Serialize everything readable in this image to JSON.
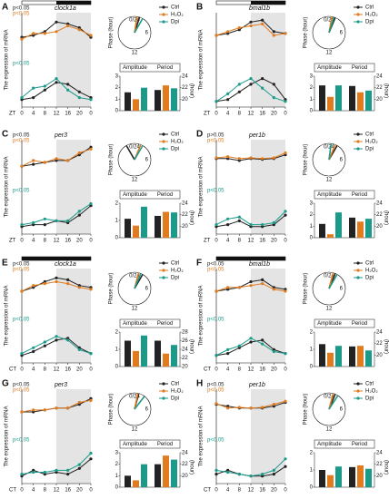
{
  "shared": {
    "legend": [
      {
        "name": "Ctrl",
        "color": "#222222"
      },
      {
        "name": "H₂O₂",
        "color": "#e07b20"
      },
      {
        "name": "Dpi",
        "color": "#1b9a8a"
      }
    ],
    "y_label": "The expression of mRNA",
    "phase_label": "Phase (hour)",
    "phase_ticks": [
      "0/24",
      "6",
      "12"
    ],
    "bar_categories": [
      "Amplitude",
      "Period"
    ],
    "y2_label": "(hour)"
  },
  "chart_data": [
    {
      "type": "line",
      "label": "A",
      "gene": "clock1a",
      "x_prefix": "ZT",
      "light_bar": "LD",
      "p_values": [
        "p<0.05",
        "p<0.05",
        "p<0.05"
      ],
      "x": [
        0,
        4,
        8,
        12,
        16,
        20,
        24
      ],
      "xlim": [
        0,
        24
      ],
      "xticks": [
        0,
        4,
        8,
        12,
        16,
        20,
        {
          "value": 24,
          "label": "0"
        }
      ],
      "ylim": [
        0,
        1
      ],
      "top": [
        [
          0.45,
          0.5,
          0.6,
          0.85,
          0.8,
          0.7,
          0.45
        ],
        [
          0.4,
          0.55,
          0.55,
          0.6,
          0.75,
          0.65,
          0.5
        ]
      ],
      "bottom": [
        [
          0.15,
          0.2,
          0.4,
          0.6,
          0.55,
          0.35,
          0.2
        ],
        [
          0.2,
          0.45,
          0.5,
          0.7,
          0.4,
          0.2,
          0.15
        ]
      ],
      "amplitude": [
        1.6,
        1.0,
        2.0
      ],
      "period": [
        21.6,
        22.4,
        21.9
      ],
      "bar_ylim": [
        0,
        3
      ],
      "bar_yticks": [
        0,
        1,
        2,
        3
      ],
      "y2lim": [
        18,
        24
      ],
      "y2ticks": [
        20,
        22,
        24
      ],
      "phase": [
        1.2,
        0.6,
        2
      ]
    },
    {
      "type": "line",
      "label": "B",
      "gene": "bmal1b",
      "x_prefix": "ZT",
      "light_bar": "LD",
      "x": [
        0,
        4,
        8,
        12,
        16,
        20,
        24
      ],
      "xlim": [
        0,
        24
      ],
      "xticks": [
        0,
        4,
        8,
        12,
        16,
        20,
        {
          "value": 24,
          "label": "0"
        }
      ],
      "ylim": [
        0,
        1
      ],
      "top": [
        [
          0.5,
          0.55,
          0.65,
          0.85,
          0.9,
          0.6,
          0.55
        ],
        [
          0.5,
          0.6,
          0.7,
          0.75,
          0.8,
          0.5,
          0.55
        ]
      ],
      "bottom": [
        [
          0.1,
          0.15,
          0.35,
          0.55,
          0.7,
          0.55,
          0.15
        ],
        [
          0.1,
          0.3,
          0.55,
          0.7,
          0.45,
          0.2,
          0.1
        ]
      ],
      "amplitude": [
        2.2,
        1.2,
        2.2
      ],
      "period": [
        22.3,
        21.2,
        21.5
      ],
      "bar_ylim": [
        0,
        3
      ],
      "bar_yticks": [
        0,
        1,
        2,
        3
      ],
      "y2lim": [
        18,
        24
      ],
      "y2ticks": [
        20,
        22,
        24
      ],
      "phase": [
        1.5,
        0.7,
        1.2
      ]
    },
    {
      "type": "line",
      "label": "C",
      "gene": "per3",
      "x_prefix": "ZT",
      "p_values": [
        "p<0.05",
        "p<0.05",
        "p<0.05"
      ],
      "x": [
        0,
        4,
        8,
        12,
        16,
        20,
        24
      ],
      "xlim": [
        0,
        24
      ],
      "xticks": [
        0,
        4,
        8,
        12,
        16,
        20,
        {
          "value": 24,
          "label": "0"
        }
      ],
      "ylim": [
        0,
        1
      ],
      "top": [
        [
          0.4,
          0.45,
          0.5,
          0.55,
          0.55,
          0.7,
          0.9
        ],
        [
          0.4,
          0.55,
          0.5,
          0.6,
          0.55,
          0.75,
          0.85
        ]
      ],
      "bottom": [
        [
          0.15,
          0.2,
          0.2,
          0.3,
          0.25,
          0.45,
          0.7
        ],
        [
          0.2,
          0.25,
          0.35,
          0.3,
          0.3,
          0.55,
          0.75
        ]
      ],
      "amplitude": [
        1.1,
        0.7,
        1.8
      ],
      "period": [
        21.8,
        22.5,
        22.4
      ],
      "bar_ylim": [
        0,
        2
      ],
      "bar_yticks": [
        0,
        1,
        2
      ],
      "y2lim": [
        18,
        24
      ],
      "y2ticks": [
        20,
        22,
        24
      ],
      "phase": [
        22,
        1.5,
        2
      ]
    },
    {
      "type": "line",
      "label": "D",
      "gene": "per1b",
      "x_prefix": "ZT",
      "p_values": [
        "p>0.05",
        "p<0.05",
        "p<0.05"
      ],
      "x": [
        0,
        4,
        8,
        12,
        16,
        20,
        24
      ],
      "xlim": [
        0,
        24
      ],
      "xticks": [
        0,
        4,
        8,
        12,
        16,
        20,
        {
          "value": 24,
          "label": "0"
        }
      ],
      "ylim": [
        0,
        1
      ],
      "top": [
        [
          0.6,
          0.6,
          0.55,
          0.6,
          0.58,
          0.6,
          0.7
        ],
        [
          0.62,
          0.65,
          0.6,
          0.62,
          0.6,
          0.62,
          0.75
        ]
      ],
      "bottom": [
        [
          0.15,
          0.2,
          0.3,
          0.15,
          0.15,
          0.2,
          0.45
        ],
        [
          0.2,
          0.35,
          0.4,
          0.2,
          0.2,
          0.25,
          0.55
        ]
      ],
      "amplitude": [
        1.2,
        0.3,
        2.2
      ],
      "period": [
        21.5,
        20.8,
        21.3
      ],
      "bar_ylim": [
        0,
        3
      ],
      "bar_yticks": [
        0,
        1,
        2,
        3
      ],
      "y2lim": [
        18,
        24
      ],
      "y2ticks": [
        20,
        22,
        24
      ],
      "phase": [
        2,
        1.5,
        0.5
      ]
    },
    {
      "type": "line",
      "label": "E",
      "gene": "clock1a",
      "x_prefix": "CT",
      "light_bar": "DD",
      "p_values": [
        "p<0.05",
        "p<0.05",
        "p<0.05"
      ],
      "x": [
        0,
        4,
        8,
        12,
        16,
        20,
        24
      ],
      "xlim": [
        0,
        24
      ],
      "xticks": [
        0,
        4,
        8,
        12,
        16,
        20,
        {
          "value": 24,
          "label": "0"
        }
      ],
      "ylim": [
        0,
        1
      ],
      "top": [
        [
          0.5,
          0.6,
          0.75,
          0.85,
          0.8,
          0.65,
          0.6
        ],
        [
          0.5,
          0.65,
          0.7,
          0.75,
          0.7,
          0.6,
          0.55
        ]
      ],
      "bottom": [
        [
          0.15,
          0.25,
          0.4,
          0.55,
          0.6,
          0.35,
          0.2
        ],
        [
          0.2,
          0.35,
          0.5,
          0.65,
          0.55,
          0.3,
          0.2
        ]
      ],
      "amplitude": [
        1.5,
        0.9,
        1.8
      ],
      "period": [
        26,
        23,
        25
      ],
      "bar_ylim": [
        0,
        2
      ],
      "bar_yticks": [
        0,
        1,
        2
      ],
      "y2lim": [
        20,
        28
      ],
      "y2ticks": [
        20,
        22,
        24,
        26,
        28
      ],
      "phase": [
        2,
        1,
        1.5
      ]
    },
    {
      "type": "line",
      "label": "F",
      "gene": "bmal1b",
      "x_prefix": "CT",
      "light_bar": "DD",
      "p_values": [
        "p<0.05",
        "p<0.05",
        "p<0.05"
      ],
      "x": [
        0,
        4,
        8,
        12,
        16,
        20,
        24
      ],
      "xlim": [
        0,
        24
      ],
      "xticks": [
        0,
        4,
        8,
        12,
        16,
        20,
        {
          "value": 24,
          "label": "0"
        }
      ],
      "ylim": [
        0,
        1
      ],
      "top": [
        [
          0.5,
          0.55,
          0.6,
          0.75,
          0.8,
          0.6,
          0.55
        ],
        [
          0.5,
          0.6,
          0.6,
          0.65,
          0.7,
          0.55,
          0.5
        ]
      ],
      "bottom": [
        [
          0.15,
          0.2,
          0.35,
          0.5,
          0.55,
          0.3,
          0.2
        ],
        [
          0.15,
          0.3,
          0.4,
          0.6,
          0.45,
          0.25,
          0.2
        ]
      ],
      "amplitude": [
        1.3,
        0.8,
        1.2
      ],
      "period": [
        21.5,
        21.6,
        20.8
      ],
      "bar_ylim": [
        0,
        2
      ],
      "bar_yticks": [
        0,
        1,
        2
      ],
      "y2lim": [
        18,
        24
      ],
      "y2ticks": [
        20,
        22,
        24
      ],
      "phase": [
        1.5,
        1,
        2
      ]
    },
    {
      "type": "line",
      "label": "G",
      "gene": "per3",
      "x_prefix": "CT",
      "p_values": [
        "p<0.05",
        "p<0.05",
        "p<0.05"
      ],
      "x": [
        0,
        4,
        8,
        12,
        16,
        20,
        24
      ],
      "xlim": [
        0,
        24
      ],
      "xticks": [
        0,
        4,
        8,
        12,
        16,
        20,
        {
          "value": 24,
          "label": "0"
        }
      ],
      "ylim": [
        0,
        1
      ],
      "top": [
        [
          0.5,
          0.5,
          0.55,
          0.6,
          0.6,
          0.7,
          0.85
        ],
        [
          0.5,
          0.55,
          0.55,
          0.6,
          0.6,
          0.75,
          0.8
        ]
      ],
      "bottom": [
        [
          0.15,
          0.3,
          0.2,
          0.25,
          0.2,
          0.35,
          0.6
        ],
        [
          0.2,
          0.25,
          0.25,
          0.3,
          0.3,
          0.45,
          0.75
        ]
      ],
      "amplitude": [
        1.0,
        0.6,
        2.0
      ],
      "period": [
        22,
        23.5,
        22.8
      ],
      "bar_ylim": [
        0,
        3
      ],
      "bar_yticks": [
        0,
        1,
        2,
        3
      ],
      "y2lim": [
        18,
        24
      ],
      "y2ticks": [
        20,
        22,
        24
      ],
      "phase": [
        1,
        0.8,
        2.5
      ]
    },
    {
      "type": "line",
      "label": "H",
      "gene": "per1b",
      "x_prefix": "CT",
      "p_values": [
        "p<0.05",
        "p<0.05",
        "p<0.05"
      ],
      "x": [
        0,
        4,
        8,
        12,
        16,
        20,
        24
      ],
      "xlim": [
        0,
        24
      ],
      "xticks": [
        0,
        4,
        8,
        12,
        16,
        20,
        {
          "value": 24,
          "label": "0"
        }
      ],
      "ylim": [
        0,
        1
      ],
      "top": [
        [
          0.7,
          0.65,
          0.6,
          0.6,
          0.6,
          0.65,
          0.75
        ],
        [
          0.72,
          0.6,
          0.62,
          0.6,
          0.62,
          0.7,
          0.78
        ]
      ],
      "bottom": [
        [
          0.2,
          0.3,
          0.2,
          0.15,
          0.15,
          0.2,
          0.4
        ],
        [
          0.3,
          0.25,
          0.2,
          0.15,
          0.2,
          0.3,
          0.6
        ]
      ],
      "amplitude": [
        1.0,
        0.7,
        1.2
      ],
      "period": [
        21.5,
        21.8,
        21.2
      ],
      "bar_ylim": [
        0,
        2
      ],
      "bar_yticks": [
        0,
        1,
        2
      ],
      "y2lim": [
        18,
        24
      ],
      "y2ticks": [
        20,
        22,
        24
      ],
      "phase": [
        1.5,
        1,
        2.2
      ]
    }
  ]
}
